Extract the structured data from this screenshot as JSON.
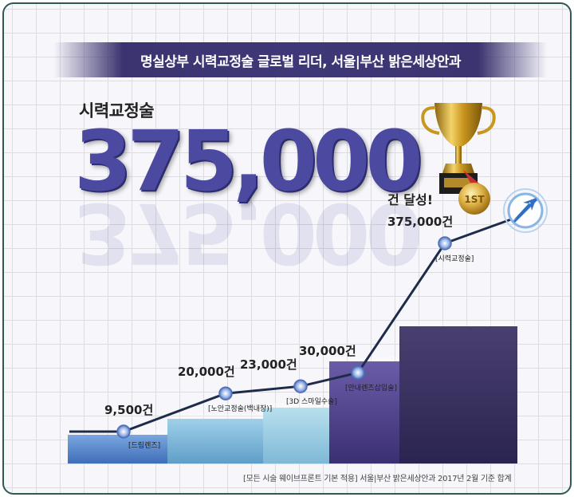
{
  "banner": {
    "text": "명실상부 시력교정술 글로벌 리더, 서울|부산 밝은세상안과"
  },
  "headline": {
    "subtitle": "시력교정술",
    "number": "375,000",
    "unit": "건 달성!"
  },
  "footnote": "[모든 시술 웨이브프론트 기본 적용] 서울|부산 밝은세상안과 2017년 2월 기준 합계",
  "colors": {
    "banner": "#3b3470",
    "number": "#4b4aa0",
    "line": "#1f2b4a",
    "bar_light": "#5f8fd0",
    "bar_dark": "#3a2f6a"
  },
  "icons": {
    "trophy": "trophy-icon",
    "medal": "medal-1st-icon",
    "arrow": "arrow-icon"
  },
  "medal_text": "1ST",
  "chart_data": {
    "type": "line",
    "title": "",
    "xlabel": "",
    "ylabel": "",
    "grid": true,
    "series": [
      {
        "points": [
          {
            "value": 9500,
            "label": "9,500건",
            "caption": "[드림렌즈]"
          },
          {
            "value": 20000,
            "label": "20,000건",
            "caption": "[노안교정술(백내장)]"
          },
          {
            "value": 23000,
            "label": "23,000건",
            "caption": "[3D 스마일수술]"
          },
          {
            "value": 30000,
            "label": "30,000건",
            "caption": "[안내렌즈삽입술]"
          },
          {
            "value": 375000,
            "label": "375,000건",
            "caption": "[시력교정술]"
          }
        ]
      }
    ]
  }
}
